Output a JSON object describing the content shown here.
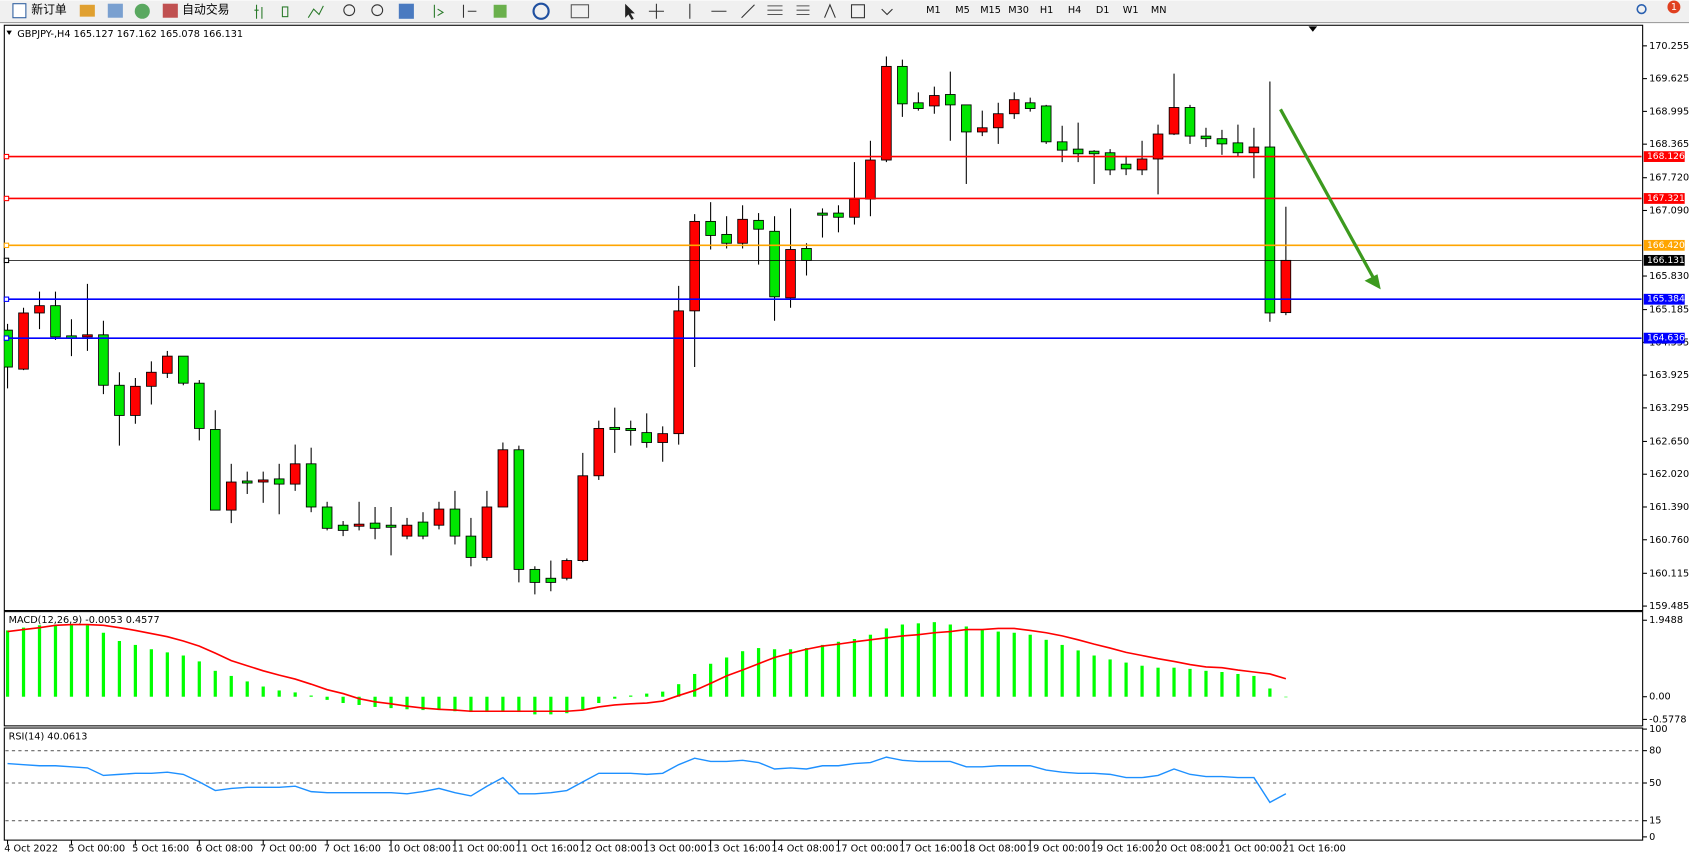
{
  "toolbar": {
    "buttons": [
      "新订单",
      "自动交易"
    ],
    "timeframes": [
      "M1",
      "M5",
      "M15",
      "M30",
      "H1",
      "H4",
      "D1",
      "W1",
      "MN"
    ],
    "badge": 1
  },
  "chart_data": [
    {
      "type": "candlestick",
      "title": "GBPJPY-,H4 165.127 167.162 165.078 166.131",
      "categories": [
        "4 Oct 2022",
        null,
        null,
        null,
        "5 Oct 00:00",
        null,
        null,
        null,
        "5 Oct 16:00",
        null,
        null,
        null,
        "6 Oct 08:00",
        null,
        null,
        null,
        "7 Oct 00:00",
        null,
        null,
        null,
        "7 Oct 16:00",
        null,
        null,
        null,
        "10 Oct 08:00",
        null,
        null,
        null,
        "11 Oct 00:00",
        null,
        null,
        null,
        "11 Oct 16:00",
        null,
        null,
        null,
        "12 Oct 08:00",
        null,
        null,
        null,
        "13 Oct 00:00",
        null,
        null,
        null,
        "13 Oct 16:00",
        null,
        null,
        null,
        "14 Oct 08:00",
        null,
        null,
        null,
        "17 Oct 00:00",
        null,
        null,
        null,
        "17 Oct 16:00",
        null,
        null,
        null,
        "18 Oct 08:00",
        null,
        null,
        null,
        "19 Oct 00:00",
        null,
        null,
        null,
        "19 Oct 16:00",
        null,
        null,
        null,
        "20 Oct 08:00",
        null,
        null,
        null,
        "21 Oct 00:00",
        null,
        null,
        null,
        "21 Oct 16:00"
      ],
      "open": [
        164.79,
        164.04,
        165.12,
        165.26,
        164.68,
        164.66,
        164.7,
        163.73,
        163.15,
        163.71,
        163.96,
        164.29,
        163.77,
        162.88,
        161.33,
        161.89,
        161.87,
        161.93,
        161.83,
        162.22,
        161.39,
        161.04,
        161.02,
        161.08,
        161.04,
        160.83,
        161.1,
        161.04,
        161.35,
        160.83,
        160.42,
        161.39,
        162.49,
        160.19,
        160.02,
        160.02,
        160.36,
        161.99,
        162.92,
        162.9,
        162.82,
        162.63,
        162.8,
        165.16,
        166.88,
        166.63,
        166.46,
        166.9,
        166.69,
        165.41,
        166.36,
        167.04,
        167.04,
        166.96,
        167.31,
        168.06,
        169.86,
        169.16,
        169.1,
        169.32,
        169.12,
        168.6,
        168.68,
        168.95,
        169.16,
        169.1,
        168.41,
        168.27,
        168.23,
        168.2,
        167.98,
        167.87,
        168.08,
        168.56,
        169.07,
        168.52,
        168.47,
        168.39,
        168.2,
        168.31,
        165.127
      ],
      "high": [
        164.91,
        165.22,
        165.53,
        165.53,
        165.0,
        165.68,
        164.97,
        163.98,
        163.87,
        164.19,
        164.39,
        164.29,
        163.83,
        163.25,
        162.22,
        162.07,
        162.07,
        162.22,
        162.59,
        162.53,
        161.49,
        161.12,
        161.49,
        161.39,
        161.39,
        161.18,
        161.29,
        161.49,
        161.7,
        161.18,
        161.7,
        162.63,
        162.57,
        160.25,
        160.36,
        160.4,
        162.43,
        163.05,
        163.3,
        163.05,
        163.19,
        162.94,
        165.64,
        167.02,
        167.25,
        166.98,
        167.19,
        167.04,
        166.98,
        167.13,
        166.46,
        167.13,
        167.19,
        168.02,
        168.43,
        170.05,
        169.99,
        169.36,
        169.47,
        169.76,
        169.12,
        169.01,
        169.16,
        169.36,
        169.26,
        169.12,
        168.72,
        168.78,
        168.25,
        168.27,
        168.14,
        168.43,
        168.74,
        169.72,
        169.12,
        168.68,
        168.64,
        168.74,
        168.68,
        169.57,
        167.162
      ],
      "low": [
        163.67,
        164.02,
        164.81,
        164.6,
        164.29,
        164.39,
        163.56,
        162.57,
        162.99,
        163.36,
        163.87,
        163.73,
        162.67,
        161.33,
        161.08,
        161.64,
        161.47,
        161.25,
        161.7,
        161.29,
        160.94,
        160.83,
        160.94,
        160.77,
        160.46,
        160.77,
        160.77,
        160.96,
        160.67,
        160.25,
        160.36,
        161.39,
        159.94,
        159.71,
        159.77,
        159.98,
        160.33,
        161.91,
        162.43,
        162.57,
        162.53,
        162.26,
        162.59,
        164.08,
        166.34,
        166.36,
        166.36,
        166.05,
        164.97,
        165.22,
        165.84,
        166.57,
        166.67,
        166.82,
        166.98,
        168.02,
        168.89,
        169.01,
        168.95,
        168.43,
        167.6,
        168.52,
        168.37,
        168.85,
        168.99,
        168.37,
        168.02,
        168.02,
        167.6,
        167.77,
        167.77,
        167.77,
        167.4,
        168.54,
        168.37,
        168.31,
        168.16,
        168.12,
        167.71,
        164.95,
        165.078
      ],
      "close": [
        164.08,
        165.12,
        165.26,
        164.66,
        164.64,
        164.7,
        163.73,
        163.15,
        163.71,
        163.98,
        164.29,
        163.77,
        162.9,
        161.33,
        161.87,
        161.85,
        161.91,
        161.83,
        162.22,
        161.39,
        160.98,
        160.94,
        161.06,
        160.98,
        161.0,
        161.04,
        160.83,
        161.35,
        160.83,
        160.42,
        161.39,
        162.49,
        160.19,
        159.94,
        159.94,
        160.36,
        161.99,
        162.9,
        162.88,
        162.86,
        162.63,
        162.8,
        165.16,
        166.88,
        166.61,
        166.46,
        166.92,
        166.73,
        165.43,
        166.34,
        166.13,
        167.0,
        166.96,
        167.31,
        168.06,
        169.86,
        169.14,
        169.05,
        169.3,
        169.12,
        168.6,
        168.68,
        168.95,
        169.22,
        169.05,
        168.41,
        168.25,
        168.18,
        168.18,
        167.87,
        167.89,
        168.08,
        168.56,
        169.07,
        168.52,
        168.47,
        168.37,
        168.2,
        168.31,
        165.12,
        166.131
      ],
      "up_color": "#ff0000",
      "down_color": "#00e600",
      "ylim": [
        159.42,
        170.63
      ],
      "yticks": [
        170.255,
        169.625,
        168.995,
        168.365,
        {
          "value": 167.72,
          "label": "167.720"
        },
        {
          "value": 167.09,
          "label": "167.090"
        },
        {
          "value": 165.83,
          "label": "165.830"
        },
        165.185,
        164.555,
        163.925,
        163.295,
        {
          "value": 162.65,
          "label": "162.650"
        },
        {
          "value": 162.02,
          "label": "162.020"
        },
        {
          "value": 161.39,
          "label": "161.390"
        },
        {
          "value": 160.76,
          "label": "160.760"
        },
        160.115,
        159.485
      ],
      "levels": [
        {
          "value": 168.126,
          "color": "#ff0000"
        },
        {
          "value": 167.321,
          "color": "#ff0000"
        },
        {
          "value": 166.42,
          "label": "166.420",
          "color": "#ffa500"
        },
        {
          "value": 166.131,
          "color": "#000000"
        },
        {
          "value": 165.384,
          "color": "#0000ff"
        },
        {
          "value": 164.636,
          "color": "#0000ff"
        }
      ]
    },
    {
      "type": "macd",
      "title": "MACD(12,26,9) -0.0053 0.4577",
      "histogram": {
        "color": "#00ff00",
        "values": [
          1.69,
          1.76,
          1.82,
          1.84,
          1.84,
          1.82,
          1.63,
          1.42,
          1.32,
          1.21,
          1.13,
          1.05,
          0.9,
          0.66,
          0.53,
          0.39,
          0.26,
          0.16,
          0.11,
          0.03,
          -0.08,
          -0.16,
          -0.21,
          -0.26,
          -0.29,
          -0.32,
          -0.34,
          -0.34,
          -0.37,
          -0.39,
          -0.39,
          -0.37,
          -0.39,
          -0.45,
          -0.45,
          -0.42,
          -0.32,
          -0.16,
          -0.05,
          0.03,
          0.08,
          0.13,
          0.32,
          0.58,
          0.84,
          1.0,
          1.16,
          1.24,
          1.21,
          1.21,
          1.24,
          1.32,
          1.4,
          1.47,
          1.58,
          1.74,
          1.84,
          1.87,
          1.9,
          1.84,
          1.79,
          1.71,
          1.66,
          1.63,
          1.58,
          1.45,
          1.32,
          1.18,
          1.05,
          0.95,
          0.87,
          0.79,
          0.74,
          0.74,
          0.71,
          0.66,
          0.63,
          0.58,
          0.53,
          0.21,
          -0.0053
        ]
      },
      "signal": {
        "color": "#ff0000",
        "values": [
          1.66,
          1.71,
          1.76,
          1.82,
          1.84,
          1.84,
          1.82,
          1.76,
          1.69,
          1.61,
          1.53,
          1.42,
          1.29,
          1.11,
          0.92,
          0.79,
          0.66,
          0.55,
          0.45,
          0.32,
          0.18,
          0.08,
          -0.05,
          -0.13,
          -0.18,
          -0.24,
          -0.29,
          -0.32,
          -0.34,
          -0.37,
          -0.37,
          -0.37,
          -0.37,
          -0.37,
          -0.37,
          -0.37,
          -0.34,
          -0.26,
          -0.21,
          -0.18,
          -0.16,
          -0.11,
          0.03,
          0.16,
          0.34,
          0.53,
          0.68,
          0.84,
          1.0,
          1.11,
          1.21,
          1.29,
          1.34,
          1.4,
          1.45,
          1.5,
          1.55,
          1.58,
          1.63,
          1.66,
          1.71,
          1.71,
          1.74,
          1.74,
          1.69,
          1.63,
          1.55,
          1.45,
          1.34,
          1.24,
          1.13,
          1.05,
          0.97,
          0.9,
          0.82,
          0.76,
          0.74,
          0.68,
          0.63,
          0.58,
          0.4577
        ]
      },
      "ylim": [
        -0.5778,
        1.9488
      ],
      "yticks": [
        1.9488,
        {
          "value": 0,
          "label": "0.00"
        },
        -0.5778
      ]
    },
    {
      "type": "rsi",
      "title": "RSI(14) 40.0613",
      "color": "#1e90ff",
      "values": [
        68,
        67,
        66,
        66,
        65,
        64,
        57,
        58,
        59,
        59,
        60,
        58,
        51,
        43,
        45,
        46,
        46,
        46,
        47,
        42,
        41,
        41,
        41,
        41,
        41,
        40,
        42,
        45,
        41,
        38,
        47,
        55,
        40,
        40,
        41,
        43,
        51,
        59,
        59,
        59,
        58,
        59,
        67,
        73,
        70,
        70,
        71,
        69,
        63,
        64,
        63,
        66,
        66,
        68,
        69,
        74,
        71,
        70,
        70,
        70,
        65,
        65,
        66,
        66,
        66,
        62,
        60,
        59,
        59,
        58,
        55,
        55,
        57,
        63,
        58,
        56,
        56,
        55,
        55,
        32,
        40.0613
      ],
      "ylim": [
        0,
        100
      ],
      "yticks": [
        100,
        80,
        50,
        15,
        0
      ],
      "grid": "dashed"
    }
  ]
}
